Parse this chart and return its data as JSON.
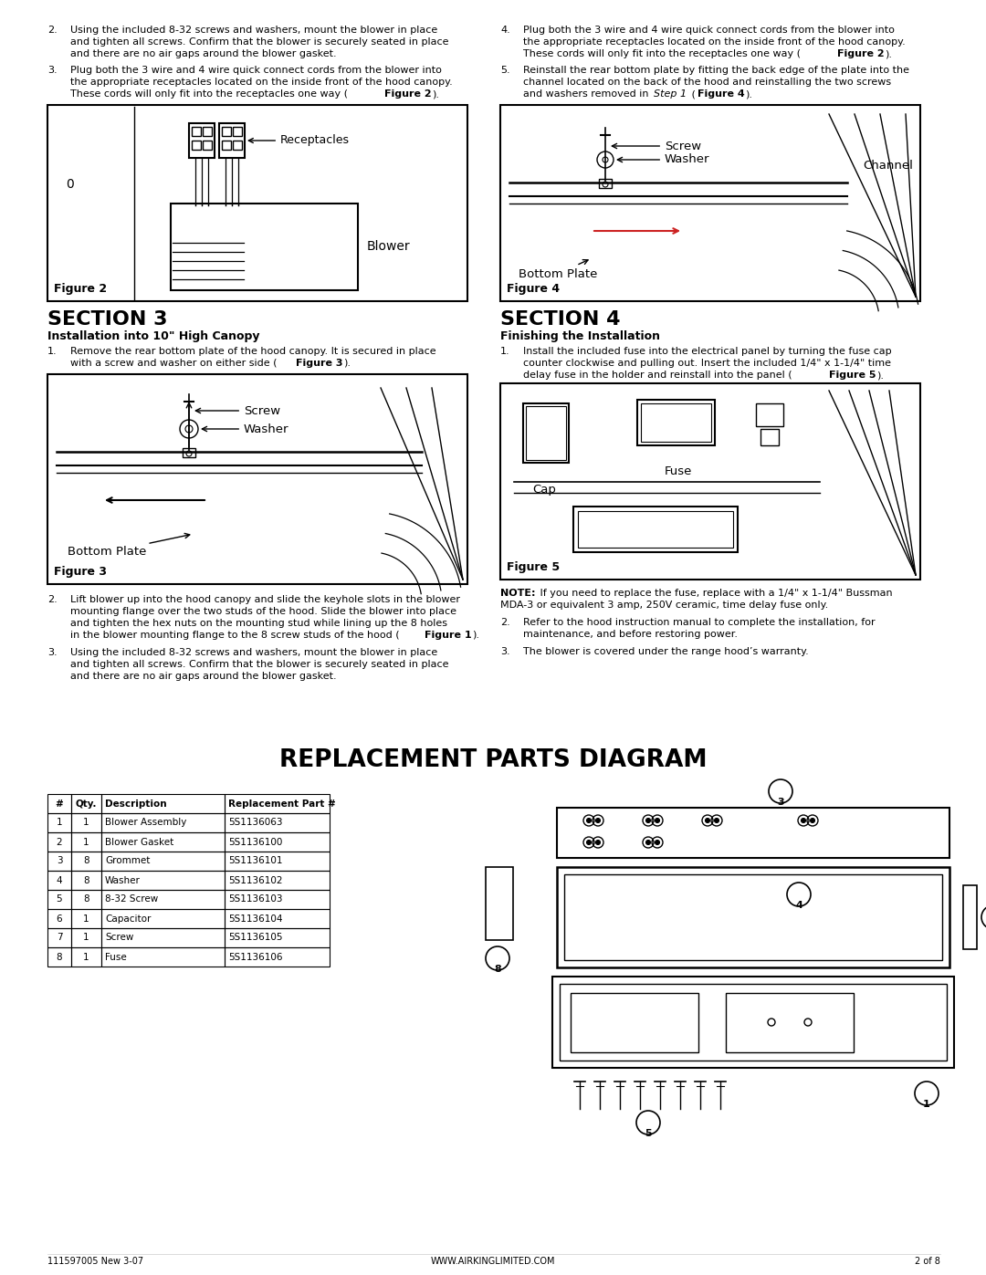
{
  "page_bg": "#ffffff",
  "page_width": 10.8,
  "page_height": 13.97,
  "footer_left": "111597005 New 3-07",
  "footer_center": "WWW.AIRKINGLIMITED.COM",
  "footer_right": "2 of 8",
  "parts_table": {
    "headers": [
      "#",
      "Qty.",
      "Description",
      "Replacement Part #"
    ],
    "rows": [
      [
        "1",
        "1",
        "Blower Assembly",
        "5S1136063"
      ],
      [
        "2",
        "1",
        "Blower Gasket",
        "5S1136100"
      ],
      [
        "3",
        "8",
        "Grommet",
        "5S1136101"
      ],
      [
        "4",
        "8",
        "Washer",
        "5S1136102"
      ],
      [
        "5",
        "8",
        "8-32 Screw",
        "5S1136103"
      ],
      [
        "6",
        "1",
        "Capacitor",
        "5S1136104"
      ],
      [
        "7",
        "1",
        "Screw",
        "5S1136105"
      ],
      [
        "8",
        "1",
        "Fuse",
        "5S1136106"
      ]
    ]
  }
}
